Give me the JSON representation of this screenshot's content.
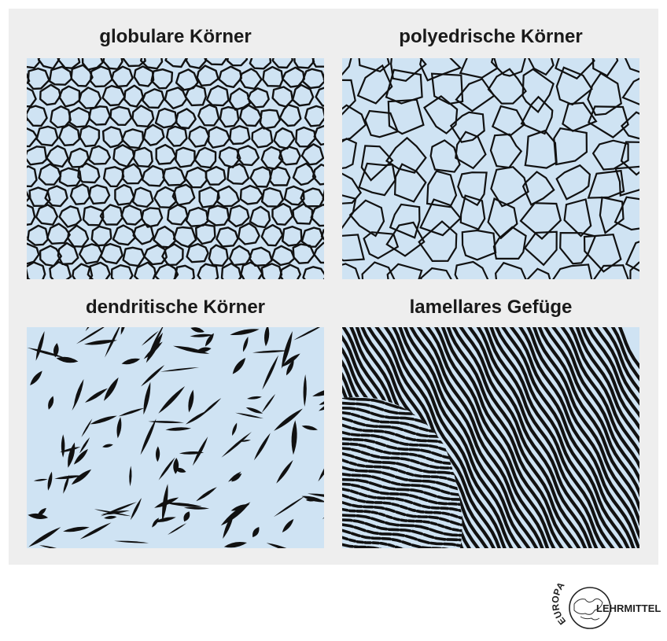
{
  "panels": [
    {
      "title": "globulare Körner"
    },
    {
      "title": "polyedrische Körner"
    },
    {
      "title": "dendritische Körner"
    },
    {
      "title": "lamellares Gefüge"
    }
  ],
  "logo": {
    "arc_text": "EUROPA",
    "main_text": "LEHRMITTEL"
  },
  "colors": {
    "background": "#eeeeee",
    "panel_fill": "#cfe3f3",
    "line": "#111111"
  }
}
